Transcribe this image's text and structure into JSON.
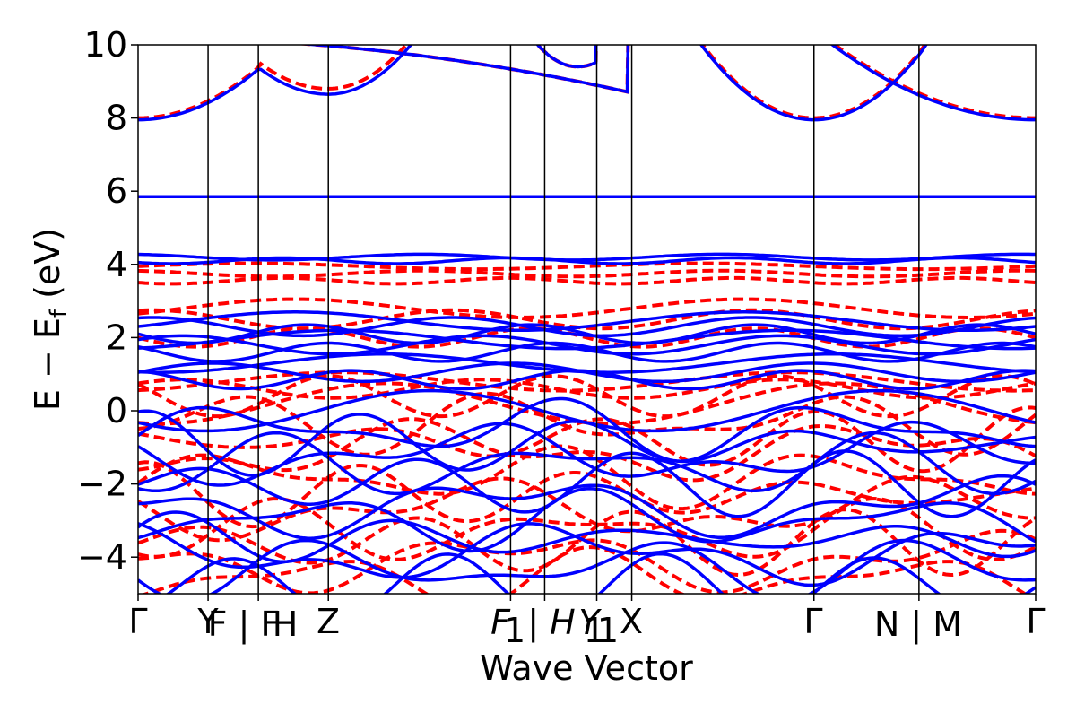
{
  "chart_data": {
    "type": "line",
    "title": "",
    "xlabel": "Wave Vector",
    "ylabel_main": "E − E",
    "ylabel_sub": "f",
    "ylabel_unit": " (eV)",
    "ylim": [
      -5,
      10
    ],
    "yticks": [
      -4,
      -2,
      0,
      2,
      4,
      6,
      8,
      10
    ],
    "ytick_labels": [
      "−4",
      "−2",
      "0",
      "2",
      "4",
      "6",
      "8",
      "10"
    ],
    "kpath_labels": [
      "Γ",
      "Y",
      "F | F",
      "H",
      "Z",
      "F",
      "1",
      " | H",
      "Y",
      "1",
      "1",
      "X",
      "Γ",
      "N | M",
      "Γ"
    ],
    "kpoints": [
      {
        "label": "Γ",
        "pos": 0.0
      },
      {
        "label": "Y",
        "pos": 0.078
      },
      {
        "label": "F|F",
        "pos": 0.134
      },
      {
        "label": "H",
        "pos": 0.134
      },
      {
        "label": "Z",
        "pos": 0.212
      },
      {
        "label": "F1|H1",
        "pos": 0.415
      },
      {
        "label": "Y1",
        "pos": 0.453
      },
      {
        "label": "X",
        "pos": 0.511
      },
      {
        "label": "Γ",
        "pos": 0.55
      },
      {
        "label": "N|M",
        "pos": 0.753
      },
      {
        "label": "Γ",
        "pos": 0.87
      },
      {
        "label": "end",
        "pos": 1.0
      }
    ],
    "grid": false,
    "series": [
      {
        "style": "solid",
        "color": "#0000ff",
        "flat_bands": [
          5.85,
          4.2,
          4.1,
          2.45,
          2.3,
          2.1,
          1.95,
          1.8,
          1.6,
          1.3,
          1.05,
          0.85,
          0.0,
          -0.5,
          -0.9,
          -1.2,
          -1.5,
          -2.0,
          -2.6,
          -3.0,
          -3.5,
          -3.9,
          -4.3,
          -4.8
        ],
        "conduction_min": 7.95,
        "conduction_at_Z": 8.65
      },
      {
        "style": "dashed",
        "color": "#ff0000",
        "flat_bands": [
          3.95,
          3.75,
          3.55,
          2.8,
          2.5,
          2.0,
          0.8,
          0.6,
          0.4,
          0.2,
          -0.3,
          -0.8,
          -1.1,
          -1.8,
          -2.3,
          -2.7,
          -3.3,
          -3.6,
          -4.1,
          -4.6
        ],
        "conduction_min": 8.0,
        "conduction_at_Z": 8.8
      }
    ]
  },
  "colors": {
    "spin_up": "#0000ff",
    "spin_down": "#ff0000",
    "axis": "#000000"
  }
}
